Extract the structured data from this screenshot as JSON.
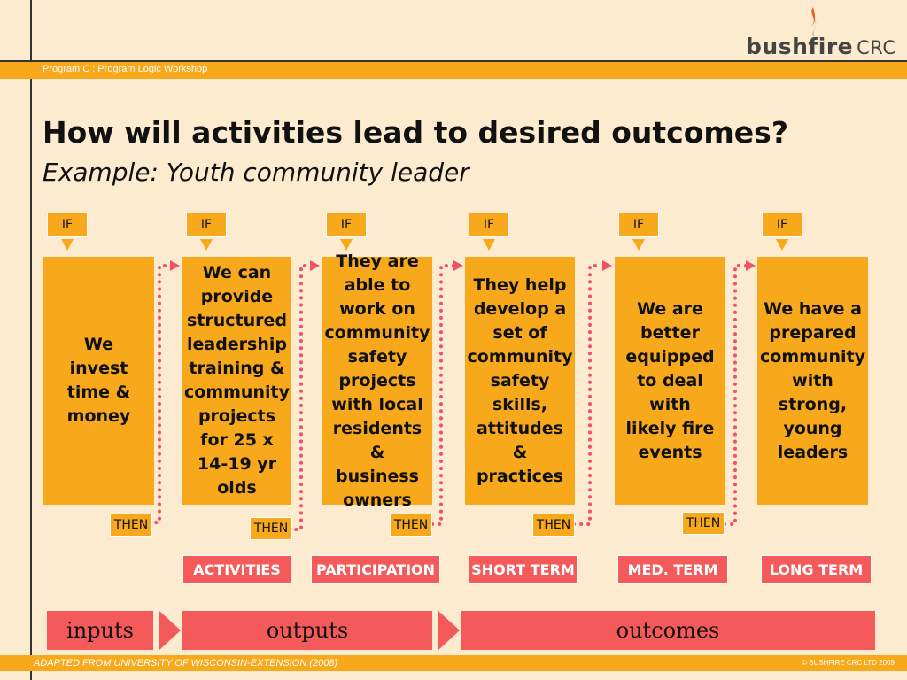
{
  "logo": {
    "brand": "bushfire",
    "suffix": "CRC",
    "flame_colors": [
      "#f05a28",
      "#7a7a7a"
    ]
  },
  "header": {
    "program": "Program C : Program Logic Workshop"
  },
  "title": "How will activities lead to desired outcomes?",
  "subtitle": "Example: Youth community leader",
  "if_label": "IF",
  "then_label": "THEN",
  "steps": [
    {
      "text": "We\ninvest\ntime &\nmoney"
    },
    {
      "text": "We can\nprovide\nstructured\nleadership\ntraining &\ncommunity\nprojects\nfor 25 x\n14-19 yr\nolds"
    },
    {
      "text": "They are\nable to\nwork on\ncommunity\nsafety\nprojects\nwith local\nresidents &\nbusiness\nowners"
    },
    {
      "text": "They help\ndevelop a\nset of\ncommunity\nsafety\nskills,\nattitudes &\npractices"
    },
    {
      "text": "We are\nbetter\nequipped\nto deal\nwith\nlikely fire\nevents"
    },
    {
      "text": "We have a\nprepared\ncommunity\nwith\nstrong,\nyoung\nleaders"
    }
  ],
  "categories": [
    "ACTIVITIES",
    "PARTICIPATION",
    "SHORT TERM",
    "MED. TERM",
    "LONG TERM"
  ],
  "phases": [
    "inputs",
    "outputs",
    "outcomes"
  ],
  "footer": {
    "source": "ADAPTED FROM UNIVERSITY OF WISCONSIN-EXTENSION (2008)",
    "copyright": "© BUSHFIRE CRC LTD 2009"
  },
  "colors": {
    "accent": "#f7a81b",
    "category": "#f55a5a",
    "dots": "#f0506e",
    "background": "#fdebd0"
  }
}
